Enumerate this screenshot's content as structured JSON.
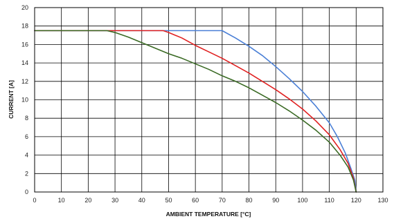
{
  "chart_data": {
    "type": "line",
    "xlabel": "AMBIENT TEMPERATURE [°C]",
    "ylabel": "CURRENT [A]",
    "xlim": [
      0,
      130
    ],
    "ylim": [
      0,
      20
    ],
    "xticks": [
      0,
      10,
      20,
      30,
      40,
      50,
      60,
      70,
      80,
      90,
      100,
      110,
      120,
      130
    ],
    "yticks": [
      0,
      2,
      4,
      6,
      8,
      10,
      12,
      14,
      16,
      18,
      20
    ],
    "grid": true,
    "series": [
      {
        "color": "#4a7fd6",
        "x": [
          0,
          70,
          75,
          80,
          85,
          90,
          95,
          100,
          105,
          110,
          113,
          116,
          118,
          119.5,
          120
        ],
        "y": [
          17.5,
          17.5,
          16.7,
          15.8,
          14.8,
          13.6,
          12.3,
          10.9,
          9.3,
          7.5,
          6.0,
          4.2,
          2.6,
          1.3,
          0
        ]
      },
      {
        "color": "#e02020",
        "x": [
          0,
          48,
          50,
          55,
          60,
          65,
          70,
          75,
          80,
          85,
          90,
          95,
          100,
          105,
          110,
          114,
          117,
          119,
          120
        ],
        "y": [
          17.5,
          17.5,
          17.3,
          16.7,
          15.9,
          15.2,
          14.5,
          13.7,
          12.9,
          12.0,
          11.1,
          10.1,
          9.0,
          7.7,
          6.2,
          4.6,
          3.1,
          1.5,
          0
        ]
      },
      {
        "color": "#3a6a24",
        "x": [
          0,
          27,
          30,
          35,
          40,
          45,
          50,
          55,
          60,
          65,
          70,
          75,
          80,
          85,
          90,
          95,
          100,
          105,
          110,
          114,
          117,
          119,
          120
        ],
        "y": [
          17.5,
          17.5,
          17.3,
          16.8,
          16.2,
          15.6,
          15.0,
          14.5,
          13.9,
          13.3,
          12.6,
          12.0,
          11.3,
          10.5,
          9.7,
          8.8,
          7.8,
          6.7,
          5.4,
          4.0,
          2.7,
          1.3,
          0
        ]
      }
    ]
  }
}
